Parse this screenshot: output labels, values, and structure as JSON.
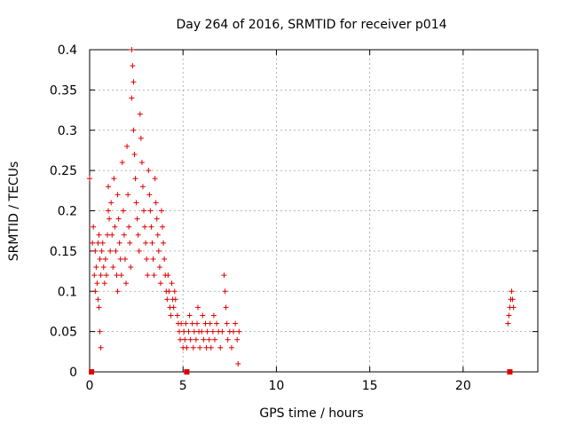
{
  "chart_data": {
    "type": "scatter",
    "title": "Day 264 of 2016, SRMTID for receiver p014",
    "xlabel": "GPS time / hours",
    "ylabel": "SRMTID / TECUs",
    "xlim": [
      0,
      24
    ],
    "ylim": [
      0,
      0.4
    ],
    "x_ticks": [
      0,
      5,
      10,
      15,
      20
    ],
    "y_ticks": [
      0,
      0.05,
      0.1,
      0.15,
      0.2,
      0.25,
      0.3,
      0.35,
      0.4
    ],
    "x_tick_labels": [
      "0",
      "5",
      "10",
      "15",
      "20"
    ],
    "y_tick_labels": [
      "0",
      "0.05",
      "0.1",
      "0.15",
      "0.2",
      "0.25",
      "0.3",
      "0.35",
      "0.4"
    ],
    "grid": true,
    "color": "#e00000",
    "marker": "plus",
    "zero_markers_x": [
      0.1,
      5.2,
      22.5
    ],
    "series": [
      {
        "values_xy": [
          [
            0.0,
            0.24
          ],
          [
            0.15,
            0.16
          ],
          [
            0.2,
            0.18
          ],
          [
            0.25,
            0.12
          ],
          [
            0.3,
            0.1
          ],
          [
            0.3,
            0.15
          ],
          [
            0.35,
            0.13
          ],
          [
            0.4,
            0.11
          ],
          [
            0.45,
            0.09
          ],
          [
            0.45,
            0.16
          ],
          [
            0.5,
            0.08
          ],
          [
            0.5,
            0.17
          ],
          [
            0.55,
            0.05
          ],
          [
            0.55,
            0.14
          ],
          [
            0.6,
            0.03
          ],
          [
            0.6,
            0.12
          ],
          [
            0.65,
            0.15
          ],
          [
            0.7,
            0.16
          ],
          [
            0.75,
            0.13
          ],
          [
            0.8,
            0.11
          ],
          [
            0.85,
            0.14
          ],
          [
            0.9,
            0.12
          ],
          [
            0.95,
            0.17
          ],
          [
            1.0,
            0.2
          ],
          [
            1.0,
            0.23
          ],
          [
            1.05,
            0.19
          ],
          [
            1.1,
            0.15
          ],
          [
            1.15,
            0.21
          ],
          [
            1.2,
            0.17
          ],
          [
            1.25,
            0.13
          ],
          [
            1.3,
            0.24
          ],
          [
            1.35,
            0.18
          ],
          [
            1.4,
            0.15
          ],
          [
            1.45,
            0.12
          ],
          [
            1.5,
            0.1
          ],
          [
            1.5,
            0.22
          ],
          [
            1.55,
            0.19
          ],
          [
            1.6,
            0.16
          ],
          [
            1.65,
            0.14
          ],
          [
            1.7,
            0.12
          ],
          [
            1.75,
            0.26
          ],
          [
            1.8,
            0.2
          ],
          [
            1.85,
            0.17
          ],
          [
            1.9,
            0.14
          ],
          [
            1.95,
            0.11
          ],
          [
            2.0,
            0.28
          ],
          [
            2.05,
            0.22
          ],
          [
            2.1,
            0.18
          ],
          [
            2.15,
            0.16
          ],
          [
            2.2,
            0.13
          ],
          [
            2.25,
            0.34
          ],
          [
            2.25,
            0.4
          ],
          [
            2.3,
            0.38
          ],
          [
            2.35,
            0.36
          ],
          [
            2.35,
            0.3
          ],
          [
            2.4,
            0.27
          ],
          [
            2.45,
            0.24
          ],
          [
            2.5,
            0.21
          ],
          [
            2.55,
            0.19
          ],
          [
            2.6,
            0.17
          ],
          [
            2.65,
            0.15
          ],
          [
            2.7,
            0.32
          ],
          [
            2.75,
            0.29
          ],
          [
            2.8,
            0.26
          ],
          [
            2.85,
            0.23
          ],
          [
            2.9,
            0.2
          ],
          [
            2.95,
            0.18
          ],
          [
            3.0,
            0.16
          ],
          [
            3.05,
            0.14
          ],
          [
            3.1,
            0.12
          ],
          [
            3.15,
            0.25
          ],
          [
            3.2,
            0.22
          ],
          [
            3.25,
            0.2
          ],
          [
            3.3,
            0.18
          ],
          [
            3.35,
            0.16
          ],
          [
            3.4,
            0.14
          ],
          [
            3.45,
            0.12
          ],
          [
            3.5,
            0.24
          ],
          [
            3.55,
            0.21
          ],
          [
            3.6,
            0.19
          ],
          [
            3.65,
            0.17
          ],
          [
            3.7,
            0.15
          ],
          [
            3.75,
            0.13
          ],
          [
            3.8,
            0.11
          ],
          [
            3.85,
            0.2
          ],
          [
            3.9,
            0.18
          ],
          [
            3.95,
            0.16
          ],
          [
            4.0,
            0.14
          ],
          [
            4.05,
            0.12
          ],
          [
            4.1,
            0.1
          ],
          [
            4.15,
            0.09
          ],
          [
            4.2,
            0.12
          ],
          [
            4.25,
            0.1
          ],
          [
            4.3,
            0.08
          ],
          [
            4.35,
            0.07
          ],
          [
            4.4,
            0.11
          ],
          [
            4.45,
            0.09
          ],
          [
            4.5,
            0.08
          ],
          [
            4.55,
            0.1
          ],
          [
            4.6,
            0.09
          ],
          [
            4.7,
            0.07
          ],
          [
            4.75,
            0.06
          ],
          [
            4.8,
            0.05
          ],
          [
            4.85,
            0.04
          ],
          [
            4.9,
            0.06
          ],
          [
            5.0,
            0.03
          ],
          [
            5.05,
            0.05
          ],
          [
            5.1,
            0.04
          ],
          [
            5.15,
            0.06
          ],
          [
            5.2,
            0.03
          ],
          [
            5.3,
            0.05
          ],
          [
            5.35,
            0.07
          ],
          [
            5.4,
            0.04
          ],
          [
            5.5,
            0.06
          ],
          [
            5.55,
            0.03
          ],
          [
            5.6,
            0.05
          ],
          [
            5.7,
            0.04
          ],
          [
            5.75,
            0.06
          ],
          [
            5.8,
            0.08
          ],
          [
            5.85,
            0.05
          ],
          [
            5.9,
            0.03
          ],
          [
            6.0,
            0.05
          ],
          [
            6.05,
            0.07
          ],
          [
            6.1,
            0.04
          ],
          [
            6.2,
            0.06
          ],
          [
            6.25,
            0.03
          ],
          [
            6.3,
            0.05
          ],
          [
            6.4,
            0.04
          ],
          [
            6.45,
            0.06
          ],
          [
            6.5,
            0.03
          ],
          [
            6.6,
            0.05
          ],
          [
            6.65,
            0.07
          ],
          [
            6.7,
            0.04
          ],
          [
            6.8,
            0.06
          ],
          [
            6.9,
            0.05
          ],
          [
            7.0,
            0.03
          ],
          [
            7.1,
            0.05
          ],
          [
            7.2,
            0.12
          ],
          [
            7.25,
            0.1
          ],
          [
            7.3,
            0.08
          ],
          [
            7.35,
            0.06
          ],
          [
            7.4,
            0.04
          ],
          [
            7.5,
            0.05
          ],
          [
            7.6,
            0.03
          ],
          [
            7.7,
            0.05
          ],
          [
            7.8,
            0.06
          ],
          [
            7.9,
            0.04
          ],
          [
            7.95,
            0.01
          ],
          [
            8.0,
            0.05
          ],
          [
            22.4,
            0.06
          ],
          [
            22.45,
            0.07
          ],
          [
            22.5,
            0.08
          ],
          [
            22.55,
            0.09
          ],
          [
            22.6,
            0.1
          ],
          [
            22.65,
            0.09
          ],
          [
            22.7,
            0.08
          ]
        ]
      }
    ]
  }
}
